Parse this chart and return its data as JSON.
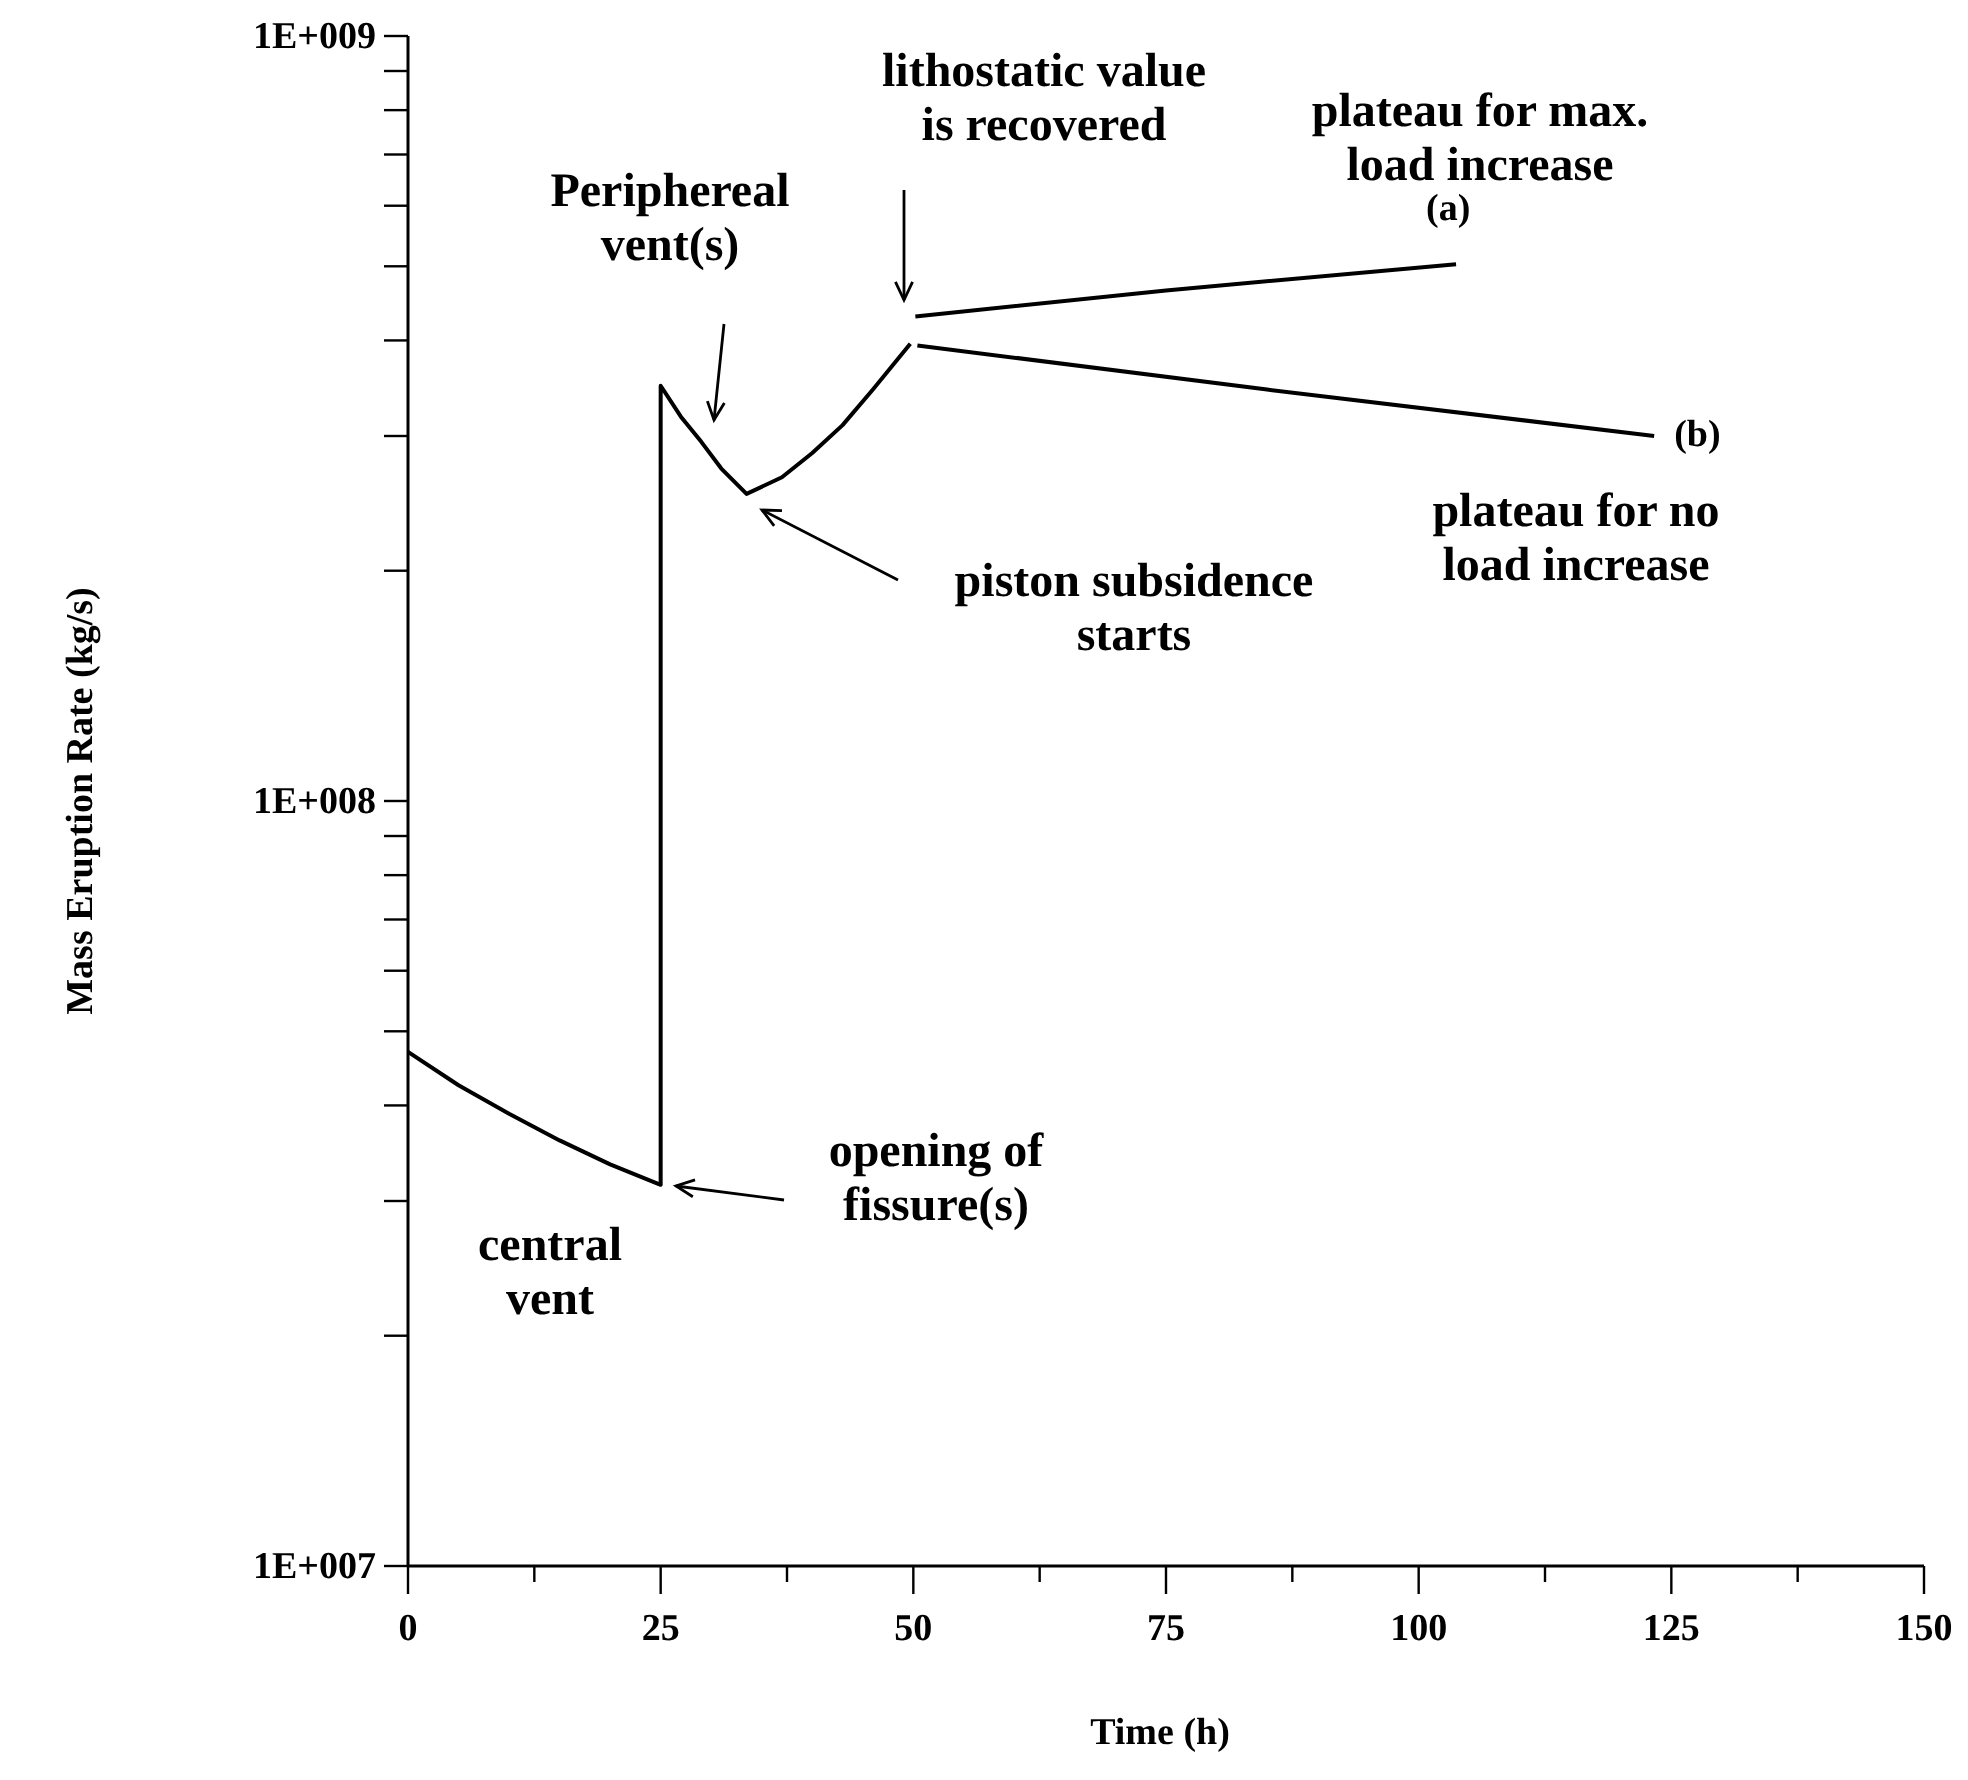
{
  "chart_data": {
    "type": "line",
    "xlabel": "Time (h)",
    "ylabel": "Mass Eruption Rate (kg/s)",
    "log": "y",
    "xlim": [
      0,
      150
    ],
    "ylim": [
      10000000,
      1000000000
    ],
    "xticks": [
      0,
      {
        "value": 12.5,
        "label": null
      },
      25,
      {
        "value": 37.5,
        "label": null
      },
      50,
      {
        "value": 62.5,
        "label": null
      },
      75,
      {
        "value": 87.5,
        "label": null
      },
      100,
      {
        "value": 112.5,
        "label": null
      },
      125,
      {
        "value": 137.5,
        "label": null
      },
      150
    ],
    "yticks": [
      {
        "value": 10000000,
        "label": "1E+007"
      },
      {
        "value": 20000000,
        "label": null
      },
      {
        "value": 30000000,
        "label": null
      },
      {
        "value": 40000000,
        "label": null
      },
      {
        "value": 50000000,
        "label": null
      },
      {
        "value": 60000000,
        "label": null
      },
      {
        "value": 70000000,
        "label": null
      },
      {
        "value": 80000000,
        "label": null
      },
      {
        "value": 90000000,
        "label": null
      },
      {
        "value": 100000000,
        "label": "1E+008"
      },
      {
        "value": 200000000,
        "label": null
      },
      {
        "value": 300000000,
        "label": null
      },
      {
        "value": 400000000,
        "label": null
      },
      {
        "value": 500000000,
        "label": null
      },
      {
        "value": 600000000,
        "label": null
      },
      {
        "value": 700000000,
        "label": null
      },
      {
        "value": 800000000,
        "label": null
      },
      {
        "value": 900000000,
        "label": null
      },
      {
        "value": 1000000000,
        "label": "1E+009"
      }
    ],
    "series": [
      {
        "color": "#000000",
        "x": [
          0,
          5,
          10,
          15,
          20,
          25,
          25,
          27,
          29,
          31,
          33.5,
          37,
          40,
          43,
          46,
          49.7
        ],
        "values": [
          47000000,
          42500000,
          39000000,
          36000000,
          33500000,
          31500000,
          349000000,
          318000000,
          295000000,
          272000000,
          252000000,
          265000000,
          285000000,
          310000000,
          345000000,
          396000000
        ]
      },
      {
        "name": "(a)",
        "color": "#000000",
        "x": [
          50.2,
          75,
          103.7
        ],
        "values": [
          430000000,
          465000000,
          503000000
        ]
      },
      {
        "name": "(b)",
        "color": "#000000",
        "x": [
          50.4,
          85,
          123.3
        ],
        "values": [
          394000000,
          345000000,
          300000000
        ]
      }
    ],
    "annotations": [
      "central\nvent",
      "opening of\nfissure(s)",
      "Periphereal\nvent(s)",
      "lithostatic value\nis recovered",
      "piston subsidence\nstarts",
      "plateau for max.\nload increase",
      "plateau for no\nload increase"
    ]
  }
}
